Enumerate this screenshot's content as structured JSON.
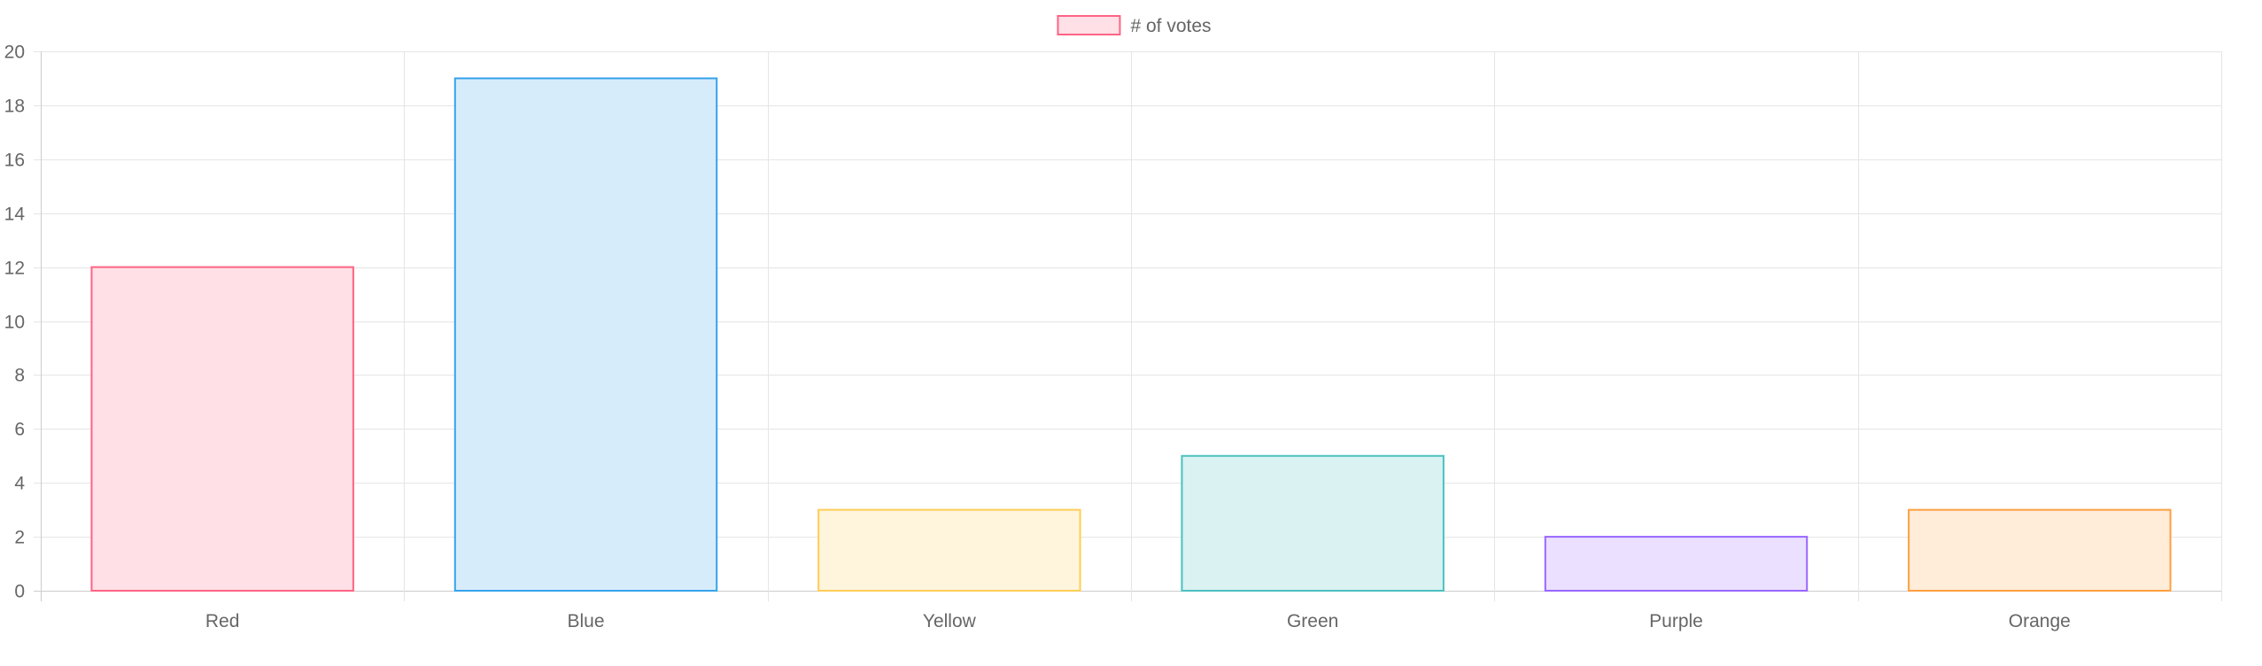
{
  "chart_data": {
    "type": "bar",
    "categories": [
      "Red",
      "Blue",
      "Yellow",
      "Green",
      "Purple",
      "Orange"
    ],
    "series": [
      {
        "name": "# of votes",
        "values": [
          12,
          19,
          3,
          5,
          2,
          3
        ]
      }
    ],
    "ylim": [
      0,
      20
    ],
    "y_ticks": [
      0,
      2,
      4,
      6,
      8,
      10,
      12,
      14,
      16,
      18,
      20
    ],
    "grid": true,
    "legend_position": "top-center",
    "legend_swatch_fill": "#ffe0e6",
    "legend_swatch_border": "#ff6384",
    "bar_fills": [
      "#ffe0e6",
      "#d7ecfb",
      "#fff5dd",
      "#dbf2f2",
      "#ebe0ff",
      "#ffecd9"
    ],
    "bar_borders": [
      "#ff6384",
      "#36a2eb",
      "#ffcd56",
      "#4bc0c0",
      "#9966ff",
      "#ff9f40"
    ],
    "grid_color": "#e5e5e5",
    "axis_color": "#cccccc"
  }
}
